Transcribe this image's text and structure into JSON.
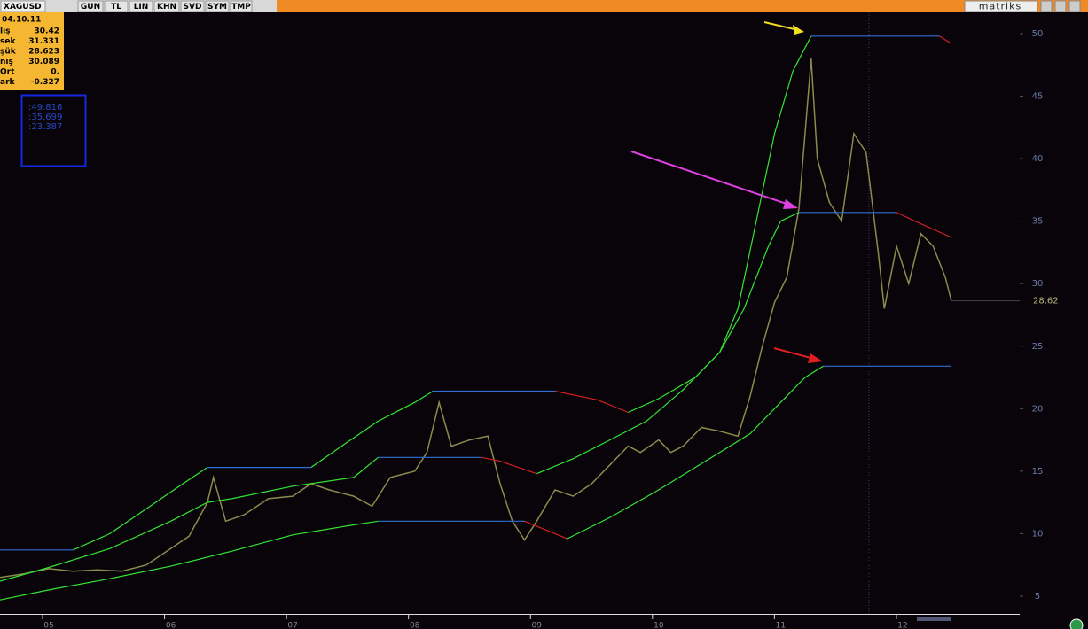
{
  "toolbar": {
    "symbol": "XAGUSD",
    "buttons": [
      "GUN",
      "TL",
      "LIN",
      "KHN",
      "SVD",
      "SYM",
      "TMP"
    ],
    "brand": "matriks"
  },
  "info_panel": {
    "date": "04.10.11",
    "rows": [
      [
        "lış",
        "30.42"
      ],
      [
        "sek",
        "31.331"
      ],
      [
        "şük",
        "28.623"
      ],
      [
        "nış",
        "30.089"
      ],
      [
        "Ort",
        "0."
      ],
      [
        "ark",
        "-0.327"
      ]
    ]
  },
  "levels_panel": [
    ":49.816",
    ":35.699",
    ":23.387"
  ],
  "chart_data": {
    "type": "line",
    "xlim": [
      4.6,
      12.96
    ],
    "ylim": [
      3.58,
      51.7
    ],
    "xticks": [
      {
        "value": 5,
        "label": "05"
      },
      {
        "value": 6,
        "label": "06"
      },
      {
        "value": 7,
        "label": "07"
      },
      {
        "value": 8,
        "label": "08"
      },
      {
        "value": 9,
        "label": "09"
      },
      {
        "value": 10,
        "label": "10"
      },
      {
        "value": 11,
        "label": "11"
      },
      {
        "value": 12,
        "label": "12"
      }
    ],
    "yticks": [
      5,
      10,
      15,
      20,
      25,
      30,
      35,
      40,
      45,
      50
    ],
    "last_price": {
      "value": 28.62,
      "label": "28.62"
    },
    "series": [
      {
        "color": "#8c8a4c",
        "x": [
          4.6,
          4.8,
          5.0,
          5.2,
          5.4,
          5.6,
          5.8,
          6.0,
          6.15,
          6.3,
          6.35,
          6.45,
          6.6,
          6.8,
          7.0,
          7.15,
          7.3,
          7.5,
          7.65,
          7.8,
          8.0,
          8.1,
          8.2,
          8.3,
          8.45,
          8.6,
          8.7,
          8.8,
          8.9,
          9.0,
          9.15,
          9.3,
          9.45,
          9.6,
          9.75,
          9.85,
          10.0,
          10.1,
          10.2,
          10.35,
          10.5,
          10.65,
          10.75,
          10.85,
          10.95,
          11.05,
          11.15,
          11.25,
          11.3,
          11.4,
          11.5,
          11.6,
          11.7,
          11.8,
          11.85,
          11.95,
          12.05,
          12.15,
          12.25,
          12.35,
          12.4
        ],
        "values": [
          6.5,
          6.8,
          7.2,
          7.0,
          7.1,
          7.0,
          7.5,
          8.8,
          9.8,
          12.5,
          14.5,
          11.0,
          11.5,
          12.8,
          13.0,
          14.0,
          13.5,
          13.0,
          12.2,
          14.5,
          15.0,
          16.5,
          20.5,
          17.0,
          17.5,
          17.8,
          14.0,
          11.0,
          9.5,
          11.0,
          13.5,
          13.0,
          14.0,
          15.5,
          17.0,
          16.5,
          17.5,
          16.5,
          17.0,
          18.5,
          18.2,
          17.8,
          21.0,
          25.0,
          28.5,
          30.5,
          36.0,
          48.0,
          40.0,
          36.5,
          35.0,
          42.0,
          40.5,
          32.5,
          28.0,
          33.0,
          30.0,
          34.0,
          33.0,
          30.5,
          28.6
        ]
      },
      {
        "color": "#33e633",
        "x": [
          5.2,
          5.5,
          5.8,
          6.1,
          6.3,
          6.7,
          7.15,
          7.4,
          7.7,
          8.0,
          8.15,
          9.0,
          9.75,
          10.0,
          10.3,
          10.5,
          10.65,
          10.8,
          10.95,
          11.1,
          11.25
        ],
        "values": [
          8.7,
          10,
          12,
          14,
          15.3,
          null,
          15.3,
          17,
          19,
          20.5,
          21.4,
          null,
          19.7,
          20.8,
          22.5,
          24.5,
          28,
          35,
          42,
          47,
          49.8
        ]
      },
      {
        "color": "#2f6fd6",
        "x": [
          4.6,
          5.2,
          5.7,
          6.3,
          7.15,
          7.6,
          8.15,
          9.15,
          10.2,
          11.25,
          12.3
        ],
        "values": [
          8.7,
          8.7,
          null,
          15.3,
          15.3,
          null,
          21.4,
          21.4,
          null,
          49.8,
          49.8
        ]
      },
      {
        "color": "#d42020",
        "x": [
          9.15,
          9.5,
          9.75,
          10.5,
          12.3,
          12.4
        ],
        "values": [
          21.4,
          20.7,
          19.7,
          null,
          49.8,
          49.2
        ]
      },
      {
        "color": "#33e633",
        "x": [
          4.6,
          5.0,
          5.5,
          6.0,
          6.3,
          6.5,
          7.0,
          7.5,
          7.7,
          8.2,
          9.0,
          9.3,
          9.6,
          9.9,
          10.2,
          10.5,
          10.7,
          10.9,
          11.0,
          11.15
        ],
        "values": [
          6.2,
          7.3,
          8.8,
          11.0,
          12.5,
          12.8,
          13.8,
          14.5,
          16.1,
          null,
          14.8,
          16,
          17.5,
          19,
          21.5,
          24.5,
          28,
          33,
          35,
          35.7
        ]
      },
      {
        "color": "#2f6fd6",
        "x": [
          7.7,
          8.55,
          9.5,
          11.15,
          11.95
        ],
        "values": [
          16.1,
          16.1,
          null,
          35.7,
          35.7
        ]
      },
      {
        "color": "#d42020",
        "x": [
          8.55,
          8.7,
          9.0,
          10,
          11.95,
          12.1,
          12.4
        ],
        "values": [
          16.1,
          15.8,
          14.8,
          null,
          35.7,
          35.0,
          33.7
        ]
      },
      {
        "color": "#33e633",
        "x": [
          4.6,
          5.0,
          5.5,
          6.0,
          6.5,
          7.0,
          7.5,
          7.7,
          8.5,
          9.25,
          9.6,
          10.0,
          10.5,
          10.75,
          11.0,
          11.2,
          11.35
        ],
        "values": [
          4.7,
          5.5,
          6.4,
          7.4,
          8.6,
          9.9,
          10.7,
          11.0,
          null,
          9.6,
          11.3,
          13.5,
          16.5,
          18,
          20.5,
          22.5,
          23.4
        ]
      },
      {
        "color": "#2f6fd6",
        "x": [
          7.7,
          8.9,
          10,
          11.35,
          12.4
        ],
        "values": [
          11.0,
          11.0,
          null,
          23.4,
          23.4
        ]
      },
      {
        "color": "#d42020",
        "x": [
          8.9,
          9.25
        ],
        "values": [
          11.0,
          9.6
        ]
      }
    ]
  }
}
